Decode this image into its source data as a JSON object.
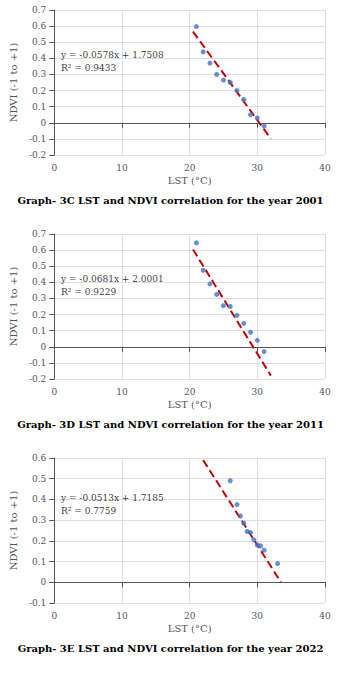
{
  "chart_data": [
    {
      "type": "scatter",
      "title": "Graph- 3C LST and NDVI correlation for the year 2001",
      "xlabel": "LST (°C)",
      "ylabel": "NDVI (-1 to +1)",
      "xlim": [
        0,
        40
      ],
      "ylim": [
        -0.2,
        0.7
      ],
      "xticks": [
        0,
        10,
        20,
        30,
        40
      ],
      "yticks": [
        -0.2,
        -0.1,
        0,
        0.1,
        0.2,
        0.3,
        0.4,
        0.5,
        0.6,
        0.7
      ],
      "grid": true,
      "series": [
        {
          "type": "scatter",
          "marker": "circle",
          "color": "#4472C4",
          "x": [
            21,
            22,
            23,
            24,
            25,
            26,
            27,
            28,
            29,
            30,
            31
          ],
          "values": [
            0.597,
            0.44,
            0.37,
            0.3,
            0.265,
            0.25,
            0.2,
            0.145,
            0.05,
            0.03,
            -0.02
          ]
        },
        {
          "type": "line",
          "line_style": "dashed",
          "color": "#C00000",
          "x": [
            20.5,
            32
          ],
          "values": [
            0.5659,
            -0.0988
          ]
        }
      ],
      "annotations": [
        {
          "text": "y = -0.0578x + 1.7508\nR² = 0.9433",
          "x": 1.0,
          "y": 0.46
        }
      ]
    },
    {
      "type": "scatter",
      "title": "Graph- 3D LST and NDVI correlation for the year 2011",
      "xlabel": "LST (°C)",
      "ylabel": "NDVI (-1 to +1)",
      "xlim": [
        0,
        40
      ],
      "ylim": [
        -0.2,
        0.7
      ],
      "xticks": [
        0,
        10,
        20,
        30,
        40
      ],
      "yticks": [
        -0.2,
        -0.1,
        0,
        0.1,
        0.2,
        0.3,
        0.4,
        0.5,
        0.6,
        0.7
      ],
      "grid": true,
      "series": [
        {
          "type": "scatter",
          "marker": "circle",
          "color": "#4472C4",
          "x": [
            21,
            22,
            23,
            24,
            25,
            26,
            27,
            28,
            29,
            30,
            31
          ],
          "values": [
            0.645,
            0.475,
            0.39,
            0.325,
            0.255,
            0.25,
            0.195,
            0.145,
            0.09,
            0.04,
            -0.03
          ]
        },
        {
          "type": "line",
          "line_style": "dashed",
          "color": "#C00000",
          "x": [
            20.5,
            32
          ],
          "values": [
            0.60405,
            -0.1791
          ]
        }
      ],
      "annotations": [
        {
          "text": "y = -0.0681x + 2.0001\nR² = 0.9229",
          "x": 1.0,
          "y": 0.46
        }
      ]
    },
    {
      "type": "scatter",
      "title": "Graph- 3E LST and NDVI correlation for the year 2022",
      "xlabel": "LST (°C)",
      "ylabel": "NDVI (-1 to +1)",
      "xlim": [
        0,
        40
      ],
      "ylim": [
        -0.1,
        0.6
      ],
      "xticks": [
        0,
        10,
        20,
        30,
        40
      ],
      "yticks": [
        -0.1,
        0,
        0.1,
        0.2,
        0.3,
        0.4,
        0.5,
        0.6
      ],
      "grid": true,
      "series": [
        {
          "type": "scatter",
          "marker": "circle",
          "color": "#4472C4",
          "x": [
            26,
            27,
            27.5,
            28,
            28.5,
            29,
            29.5,
            30,
            30.5,
            31,
            33
          ],
          "values": [
            0.49,
            0.375,
            0.32,
            0.285,
            0.245,
            0.24,
            0.205,
            0.18,
            0.175,
            0.155,
            0.09
          ]
        },
        {
          "type": "line",
          "line_style": "dashed",
          "color": "#C00000",
          "x": [
            22,
            33.5
          ],
          "values": [
            0.5899,
            -5e-05
          ]
        }
      ],
      "annotations": [
        {
          "text": "y = -0.0513x + 1.7185\nR² = 0.7759",
          "x": 1.0,
          "y": 0.44
        }
      ]
    }
  ]
}
